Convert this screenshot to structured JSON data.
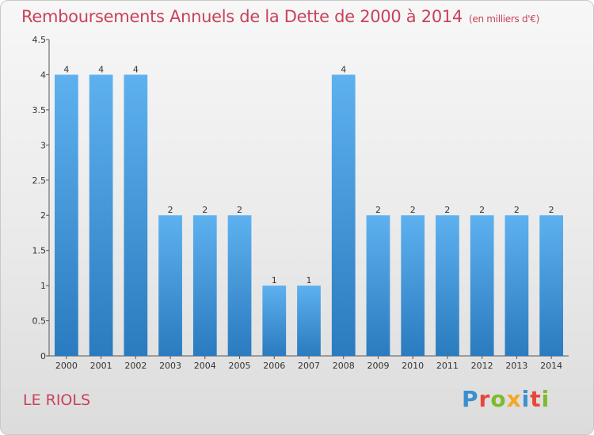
{
  "title": "Remboursements Annuels de la Dette de 2000 à 2014",
  "unit": "(en milliers d'€)",
  "commune": "LE RIOLS",
  "brand": {
    "letters": [
      {
        "ch": "P",
        "color": "#3a8fd0"
      },
      {
        "ch": "r",
        "color": "#e8463c"
      },
      {
        "ch": "o",
        "color": "#7dbb2c"
      },
      {
        "ch": "x",
        "color": "#f5a623"
      },
      {
        "ch": "i",
        "color": "#3a8fd0"
      },
      {
        "ch": "t",
        "color": "#e8463c"
      },
      {
        "ch": "i",
        "color": "#7dbb2c"
      }
    ]
  },
  "chart_data": {
    "type": "bar",
    "categories": [
      "2000",
      "2001",
      "2002",
      "2003",
      "2004",
      "2005",
      "2006",
      "2007",
      "2008",
      "2009",
      "2010",
      "2011",
      "2012",
      "2013",
      "2014"
    ],
    "values": [
      4,
      4,
      4,
      2,
      2,
      2,
      1,
      1,
      4,
      2,
      2,
      2,
      2,
      2,
      2
    ],
    "data_labels": [
      "4",
      "4",
      "4",
      "2",
      "2",
      "2",
      "1",
      "1",
      "4",
      "2",
      "2",
      "2",
      "2",
      "2",
      "2"
    ],
    "yticks": [
      "0",
      "0.5",
      "1",
      "1.5",
      "2",
      "2.5",
      "3",
      "3.5",
      "4",
      "4.5"
    ],
    "ylim": [
      0,
      4.5
    ],
    "grid": false,
    "bar_color": "#4a9de0"
  }
}
